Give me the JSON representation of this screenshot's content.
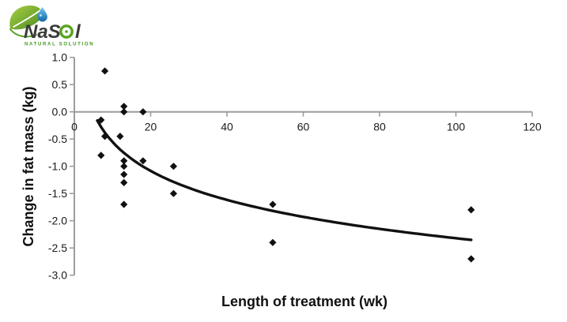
{
  "logo": {
    "brand_pre": "NaS",
    "brand_o_glyph": "o",
    "brand_post": "l",
    "tagline": "NATURAL SOLUTION",
    "colors": {
      "leaf_light": "#a9d044",
      "leaf_dark": "#4c8c21",
      "droplet_light": "#6fc9ef",
      "droplet_dark": "#1565a8",
      "brand_text": "#3b3b3b",
      "ring_green": "#56a41f",
      "tagline_green": "#3f9a1e"
    }
  },
  "chart_data": {
    "type": "scatter",
    "title": "",
    "xlabel": "Length of treatment (wk)",
    "ylabel": "Change in fat mass (kg)",
    "xlim": [
      0,
      120
    ],
    "ylim": [
      -3.0,
      1.0
    ],
    "x_ticks": [
      0,
      20,
      40,
      60,
      80,
      100,
      120
    ],
    "y_tick_labels": [
      "1.0",
      "0.5",
      "0.0",
      "-0.5",
      "-1.0",
      "-1.5",
      "-2.0",
      "-2.5",
      "-3.0"
    ],
    "grid": "none",
    "legend": "none",
    "marker": "diamond",
    "points": [
      [
        8,
        0.75
      ],
      [
        13,
        0.1
      ],
      [
        13,
        0.0
      ],
      [
        18,
        0.0
      ],
      [
        7,
        -0.15
      ],
      [
        8,
        -0.45
      ],
      [
        12,
        -0.45
      ],
      [
        7,
        -0.8
      ],
      [
        13,
        -0.9
      ],
      [
        13,
        -1.0
      ],
      [
        13,
        -1.15
      ],
      [
        13,
        -1.3
      ],
      [
        18,
        -0.9
      ],
      [
        26,
        -1.0
      ],
      [
        26,
        -1.5
      ],
      [
        13,
        -1.7
      ],
      [
        52,
        -1.7
      ],
      [
        52,
        -2.4
      ],
      [
        104,
        -1.8
      ],
      [
        104,
        -2.7
      ]
    ],
    "trendline": {
      "type": "logarithmic",
      "a": 1.216,
      "b": -0.768,
      "x_start": 6,
      "x_end": 104
    },
    "colors": {
      "marker": "#111111",
      "trend": "#111111",
      "axis": "#9c9c9c",
      "tick_text": "#1a1a1a",
      "title_text": "#111111"
    }
  }
}
